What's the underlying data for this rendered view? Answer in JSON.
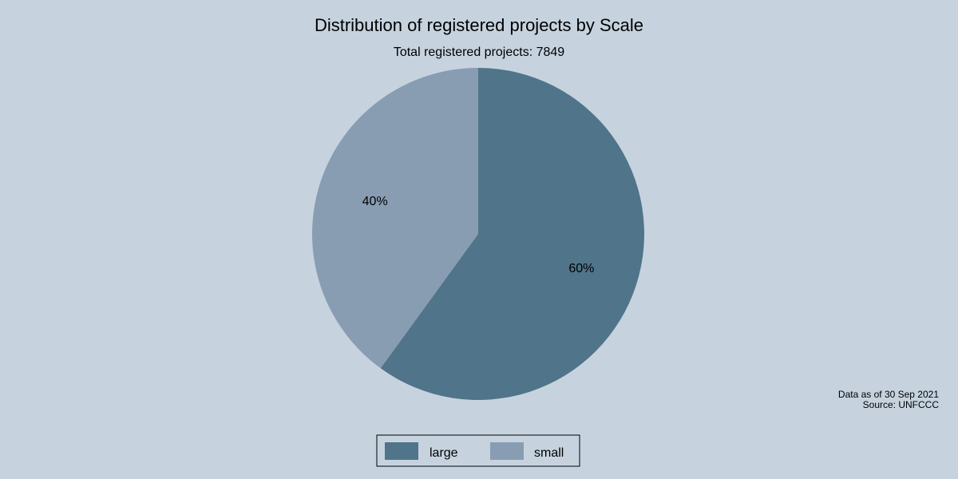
{
  "chart_data": {
    "type": "pie",
    "title": "Distribution of registered projects by Scale",
    "subtitle": "Total registered projects: 7849",
    "categories": [
      "large",
      "small"
    ],
    "values": [
      60,
      40
    ],
    "value_labels": [
      "60%",
      "40%"
    ],
    "colors": [
      "#507489",
      "#889db2"
    ],
    "legend": {
      "placement": "bottom-center",
      "entries": [
        "large",
        "small"
      ]
    },
    "notes": [
      "Data as of 30 Sep 2021",
      "Source: UNFCCC"
    ]
  },
  "colors": {
    "background": "#c6d3df",
    "legend_border": "#000000"
  }
}
